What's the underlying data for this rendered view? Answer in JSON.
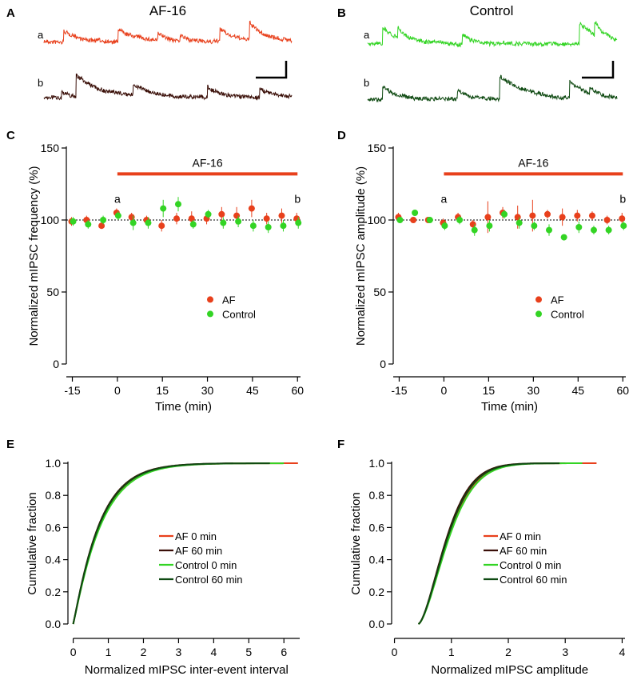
{
  "colors": {
    "af": "#e8401c",
    "control": "#33d424",
    "af_dark": "#3a0f08",
    "control_dark": "#0f4a12",
    "bar": "#e8401c"
  },
  "chart_data": [
    {
      "panel": "A",
      "type": "line",
      "title": "AF-16",
      "traces": [
        {
          "label": "a",
          "color": "af"
        },
        {
          "label": "b",
          "color": "af_dark"
        }
      ]
    },
    {
      "panel": "B",
      "type": "line",
      "title": "Control",
      "traces": [
        {
          "label": "a",
          "color": "control"
        },
        {
          "label": "b",
          "color": "control_dark"
        }
      ]
    },
    {
      "panel": "C",
      "type": "scatter",
      "xlabel": "Time (min)",
      "ylabel": "Normalized mIPSC frequency (%)",
      "xlim": [
        -17,
        61
      ],
      "ylim": [
        0,
        150
      ],
      "xticks": [
        "-15",
        "0",
        "15",
        "30",
        "45",
        "60"
      ],
      "yticks": [
        "0",
        "50",
        "100",
        "150"
      ],
      "bar_label": "AF-16",
      "bar_range": [
        0,
        60
      ],
      "mark_a": "a",
      "mark_b": "b",
      "reference": 100,
      "series": [
        {
          "name": "AF",
          "color": "af",
          "x": [
            -15,
            -10,
            -5,
            0,
            5,
            10,
            15,
            20,
            25,
            30,
            35,
            40,
            45,
            50,
            55,
            60
          ],
          "y": [
            99,
            100,
            96,
            105,
            102,
            100,
            96,
            101,
            101,
            101,
            104,
            103,
            108,
            101,
            103,
            101
          ],
          "err": [
            3,
            3,
            2,
            3,
            3,
            3,
            4,
            4,
            5,
            4,
            5,
            6,
            6,
            4,
            5,
            4
          ]
        },
        {
          "name": "Control",
          "color": "control",
          "x": [
            -15,
            -10,
            -5,
            0,
            5,
            10,
            15,
            20,
            25,
            30,
            35,
            40,
            45,
            50,
            55,
            60
          ],
          "y": [
            99,
            97,
            100,
            103,
            98,
            98,
            108,
            111,
            97,
            104,
            98,
            99,
            96,
            95,
            96,
            98
          ],
          "err": [
            3,
            3,
            3,
            3,
            5,
            4,
            6,
            5,
            3,
            3,
            4,
            4,
            4,
            4,
            4,
            4
          ]
        }
      ]
    },
    {
      "panel": "D",
      "type": "scatter",
      "xlabel": "Time (min)",
      "ylabel": "Normalized mIPSC amplitude (%)",
      "xlim": [
        -17,
        61
      ],
      "ylim": [
        0,
        150
      ],
      "xticks": [
        "-15",
        "0",
        "15",
        "30",
        "45",
        "60"
      ],
      "yticks": [
        "0",
        "50",
        "100",
        "150"
      ],
      "bar_label": "AF-16",
      "bar_range": [
        0,
        60
      ],
      "mark_a": "a",
      "mark_b": "b",
      "reference": 100,
      "series": [
        {
          "name": "AF",
          "color": "af",
          "x": [
            -15,
            -10,
            -5,
            0,
            5,
            10,
            15,
            20,
            25,
            30,
            35,
            40,
            45,
            50,
            55,
            60
          ],
          "y": [
            102,
            100,
            100,
            98,
            102,
            97,
            102,
            105,
            102,
            103,
            104,
            102,
            103,
            103,
            100,
            101
          ],
          "err": [
            3,
            2,
            2,
            3,
            3,
            3,
            11,
            4,
            8,
            11,
            3,
            6,
            4,
            3,
            3,
            4
          ]
        },
        {
          "name": "Control",
          "color": "control",
          "x": [
            -15,
            -10,
            -5,
            0,
            5,
            10,
            15,
            20,
            25,
            30,
            35,
            40,
            45,
            50,
            55,
            60
          ],
          "y": [
            100,
            105,
            100,
            96,
            100,
            93,
            96,
            104,
            98,
            96,
            93,
            88,
            95,
            93,
            93,
            96
          ],
          "err": [
            2,
            2,
            2,
            3,
            3,
            4,
            4,
            3,
            4,
            3,
            4,
            2,
            4,
            3,
            3,
            3
          ]
        }
      ]
    },
    {
      "panel": "E",
      "type": "line",
      "xlabel": "Normalized mIPSC inter-event interval",
      "ylabel": "Cumulative fraction",
      "xlim": [
        -0.15,
        6.45
      ],
      "ylim": [
        -0.03,
        1.02
      ],
      "xticks": [
        "0",
        "1",
        "2",
        "3",
        "4",
        "5",
        "6"
      ],
      "yticks": [
        "0.0",
        "0.2",
        "0.4",
        "0.6",
        "0.8",
        "1.0"
      ],
      "curves": [
        {
          "name": "AF 0 min",
          "color": "af",
          "xmax": 6.4,
          "scale": 1.0
        },
        {
          "name": "AF 60 min",
          "color": "af_dark",
          "xmax": 4.55,
          "scale": 1.05
        },
        {
          "name": "Control 0 min",
          "color": "control",
          "xmax": 6.0,
          "scale": 0.98
        },
        {
          "name": "Control 60 min",
          "color": "control_dark",
          "xmax": 5.6,
          "scale": 1.03
        }
      ]
    },
    {
      "panel": "F",
      "type": "line",
      "xlabel": "Normalized mIPSC amplitude",
      "ylabel": "Cumulative fraction",
      "xlim": [
        -0.05,
        4.05
      ],
      "ylim": [
        -0.03,
        1.02
      ],
      "xticks": [
        "0",
        "1",
        "2",
        "3",
        "4"
      ],
      "yticks": [
        "0.0",
        "0.2",
        "0.4",
        "0.6",
        "0.8",
        "1.0"
      ],
      "curves": [
        {
          "name": "AF 0 min",
          "color": "af",
          "xmax": 3.55,
          "scale": 1.0
        },
        {
          "name": "AF 60 min",
          "color": "af_dark",
          "xmax": 3.0,
          "scale": 1.05
        },
        {
          "name": "Control 0 min",
          "color": "control",
          "xmax": 3.3,
          "scale": 0.97
        },
        {
          "name": "Control 60 min",
          "color": "control_dark",
          "xmax": 2.9,
          "scale": 1.02
        }
      ]
    }
  ]
}
